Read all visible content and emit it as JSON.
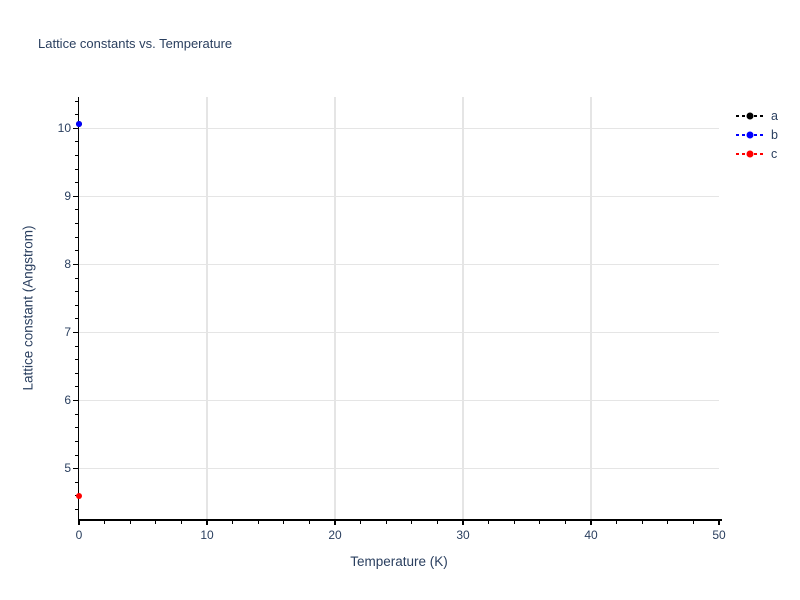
{
  "chart_data": {
    "type": "scatter",
    "title": "Lattice constants vs. Temperature",
    "xlabel": "Temperature (K)",
    "ylabel": "Lattice constant (Angstrom)",
    "xlim": [
      0,
      50
    ],
    "ylim": [
      4.26,
      10.46
    ],
    "x_ticks": [
      0,
      10,
      20,
      30,
      40,
      50
    ],
    "y_ticks": [
      5,
      6,
      7,
      8,
      9,
      10
    ],
    "x_minor_step": 2,
    "y_minor_step": 0.2,
    "grid": true,
    "background": "#ffffff",
    "grid_color": "#e5e5e5",
    "axis_color": "#000000",
    "font_color": "#2a3f5f",
    "legend_position": "top-right-outside",
    "series": [
      {
        "name": "a",
        "color": "#000000",
        "line_style": "dashed",
        "marker": "circle",
        "x": [
          0
        ],
        "y": [
          10.06
        ]
      },
      {
        "name": "b",
        "color": "#0000ff",
        "line_style": "dashed",
        "marker": "circle",
        "x": [
          0
        ],
        "y": [
          10.06
        ]
      },
      {
        "name": "c",
        "color": "#ff0000",
        "line_style": "dashed",
        "marker": "circle",
        "x": [
          0
        ],
        "y": [
          4.6
        ]
      }
    ]
  }
}
